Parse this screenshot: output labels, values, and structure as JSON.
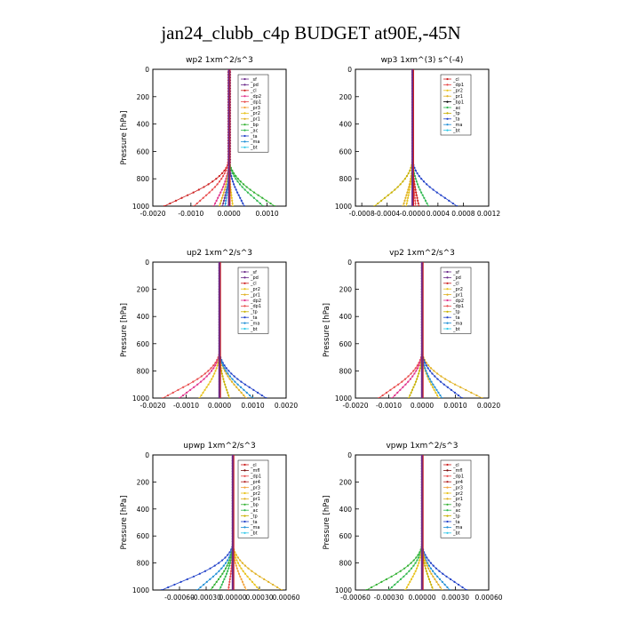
{
  "title": "jan24_clubb_c4p  BUDGET at90E,-45N",
  "colors": {
    "_sf": "#6b2a8a",
    "_pd": "#6b2a8a",
    "_cl": "#cc1f1f",
    "_dp2": "#e0308a",
    "_dp1": "#e84848",
    "_pr3": "#f2a33a",
    "_pr2": "#e8c21a",
    "_pr1": "#e0b020",
    "_bp": "#30b030",
    "_ac": "#2fb84f",
    "_ta": "#2040c8",
    "_ma": "#1f8fd6",
    "_bt": "#30c8e8",
    "_tp": "#c8b000",
    "_mfl": "#7a1010",
    "_pr4": "#b22020"
  },
  "chart_data": [
    {
      "type": "line",
      "title": "wp2   1xm^2/s^3",
      "ylabel": "Pressure [hPa]",
      "xlim": [
        -0.002,
        0.0015
      ],
      "ylim": [
        1000,
        0
      ],
      "xticks": [
        -0.002,
        -0.001,
        0.0,
        0.001
      ],
      "xtick_labels": [
        "-0.0020",
        "-0.0010",
        "0.0000",
        "0.0010"
      ],
      "yticks": [
        0,
        200,
        400,
        600,
        800,
        1000
      ],
      "ytick_labels": [
        "0",
        "200",
        "400",
        "600",
        "800",
        "1000"
      ],
      "legend": [
        "_sf",
        "_pd",
        "_cl",
        "_dp2",
        "_dp1",
        "_pr3",
        "_pr2",
        "_pr1",
        "_bp",
        "_ac",
        "_ta",
        "_ma",
        "_bt"
      ],
      "series": [
        {
          "name": "_pd",
          "peak": -0.0002,
          "base": 3e-05
        },
        {
          "name": "_cl",
          "peak": -0.0017,
          "base": 0.0
        },
        {
          "name": "_dp1",
          "peak": -0.0009,
          "base": -2e-05
        },
        {
          "name": "_dp2",
          "peak": -0.0004,
          "base": 0.0
        },
        {
          "name": "_pr1",
          "peak": -0.00025,
          "base": 0.0
        },
        {
          "name": "_pr2",
          "peak": 0.0001,
          "base": 0.0
        },
        {
          "name": "_bp",
          "peak": 0.0012,
          "base": 0.0
        },
        {
          "name": "_ac",
          "peak": 0.0009,
          "base": 0.0
        },
        {
          "name": "_ta",
          "peak": 0.0004,
          "base": 0.0
        },
        {
          "name": "_ma",
          "peak": -0.0001,
          "base": 0.0
        },
        {
          "name": "_sf",
          "peak": 0.0,
          "base": 0.0
        }
      ]
    },
    {
      "type": "line",
      "title": "wp3   1xm^(3) s^(-4)",
      "ylabel": "",
      "xlim": [
        -0.0009,
        0.0012
      ],
      "ylim": [
        1000,
        0
      ],
      "xticks": [
        -0.0008,
        -0.0004,
        0.0,
        0.0004,
        0.0008,
        0.0012
      ],
      "xtick_labels": [
        "-0.0008",
        "-0.0004",
        "-0.0000",
        "0.0004",
        "0.0008",
        "0.0012"
      ],
      "yticks": [
        0,
        200,
        400,
        600,
        800,
        1000
      ],
      "ytick_labels": [
        "0",
        "200",
        "400",
        "600",
        "800",
        "1000"
      ],
      "legend": [
        "_cl",
        "_dp1",
        "_pr2",
        "_pr1",
        "_bp1",
        "_ac",
        "_tp",
        "_ta",
        "_ma",
        "_bt"
      ],
      "series": [
        {
          "name": "_ta",
          "peak": 0.0007,
          "base": 0.0
        },
        {
          "name": "_tp",
          "peak": -0.0006,
          "base": 0.0
        },
        {
          "name": "_ac",
          "peak": 0.00025,
          "base": 0.0
        },
        {
          "name": "_pr2",
          "peak": -0.0001,
          "base": 0.0
        },
        {
          "name": "_pr1",
          "peak": -0.00015,
          "base": 0.0
        },
        {
          "name": "_dp1",
          "peak": 5e-05,
          "base": 0.0
        },
        {
          "name": "_cl",
          "peak": 0.0001,
          "base": 0.0
        }
      ]
    },
    {
      "type": "line",
      "title": "up2   1xm^2/s^3",
      "ylabel": "Pressure [hPa]",
      "xlim": [
        -0.002,
        0.002
      ],
      "ylim": [
        1000,
        0
      ],
      "xticks": [
        -0.002,
        -0.001,
        0.0,
        0.001,
        0.002
      ],
      "xtick_labels": [
        "-0.0020",
        "-0.0010",
        "0.0000",
        "0.0010",
        "0.0020"
      ],
      "yticks": [
        0,
        200,
        400,
        600,
        800,
        1000
      ],
      "ytick_labels": [
        "0",
        "200",
        "400",
        "600",
        "800",
        "1000"
      ],
      "legend": [
        "_sf",
        "_pd",
        "_cl",
        "_pr2",
        "_pr1",
        "_dp2",
        "_dp1",
        "_tp",
        "_ta",
        "_ma",
        "_bt"
      ],
      "series": [
        {
          "name": "_dp1",
          "peak": -0.0017,
          "base": 0.0
        },
        {
          "name": "_dp2",
          "peak": -0.0012,
          "base": 0.0
        },
        {
          "name": "_pr1",
          "peak": 0.0008,
          "base": 0.0
        },
        {
          "name": "_pr2",
          "peak": -0.0006,
          "base": 0.0
        },
        {
          "name": "_ta",
          "peak": 0.0014,
          "base": 0.0
        },
        {
          "name": "_ma",
          "peak": 0.001,
          "base": 0.0
        },
        {
          "name": "_tp",
          "peak": 0.0003,
          "base": 0.0
        },
        {
          "name": "_cl",
          "peak": 0.0,
          "base": 0.0
        }
      ]
    },
    {
      "type": "line",
      "title": "vp2   1xm^2/s^3",
      "ylabel": "Pressure [hPa]",
      "xlim": [
        -0.002,
        0.002
      ],
      "ylim": [
        1000,
        0
      ],
      "xticks": [
        -0.002,
        -0.001,
        0.0,
        0.001,
        0.002
      ],
      "xtick_labels": [
        "-0.0020",
        "-0.0010",
        "0.0000",
        "0.0010",
        "0.0020"
      ],
      "yticks": [
        0,
        200,
        400,
        600,
        800,
        1000
      ],
      "ytick_labels": [
        "0",
        "200",
        "400",
        "600",
        "800",
        "1000"
      ],
      "legend": [
        "_sf",
        "_pd",
        "_cl",
        "_pr2",
        "_pr1",
        "_dp2",
        "_dp1",
        "_tp",
        "_ta",
        "_ma",
        "_bt"
      ],
      "series": [
        {
          "name": "_dp1",
          "peak": -0.0013,
          "base": 0.0
        },
        {
          "name": "_dp2",
          "peak": -0.0009,
          "base": 0.0
        },
        {
          "name": "_pr1",
          "peak": 0.0018,
          "base": 0.0
        },
        {
          "name": "_pr2",
          "peak": 0.0005,
          "base": 0.0
        },
        {
          "name": "_ta",
          "peak": 0.0012,
          "base": 0.0
        },
        {
          "name": "_ma",
          "peak": 0.0006,
          "base": 0.0
        },
        {
          "name": "_tp",
          "peak": -0.0004,
          "base": 0.0
        },
        {
          "name": "_cl",
          "peak": 0.0,
          "base": 0.0
        }
      ]
    },
    {
      "type": "line",
      "title": "upwp   1xm^2/s^3",
      "ylabel": "Pressure [hPa]",
      "xlim": [
        -0.0009,
        0.0006
      ],
      "ylim": [
        1000,
        0
      ],
      "xticks": [
        -0.0006,
        -0.0003,
        0.0,
        0.0003,
        0.0006
      ],
      "xtick_labels": [
        "-0.00060",
        "-0.00030",
        "0.00000",
        "0.00030",
        "0.00060"
      ],
      "yticks": [
        0,
        200,
        400,
        600,
        800,
        1000
      ],
      "ytick_labels": [
        "0",
        "200",
        "400",
        "600",
        "800",
        "1000"
      ],
      "legend": [
        "_cl",
        "_mfl",
        "_dp1",
        "_pr4",
        "_pr3",
        "_pr2",
        "_pr1",
        "_bp",
        "_ac",
        "_tp",
        "_ta",
        "_ma",
        "_bt"
      ],
      "series": [
        {
          "name": "_ta",
          "peak": -0.0008,
          "base": 0.0
        },
        {
          "name": "_ma",
          "peak": -0.0004,
          "base": 0.0
        },
        {
          "name": "_pr1",
          "peak": 0.00055,
          "base": 0.0
        },
        {
          "name": "_pr2",
          "peak": 0.0003,
          "base": 0.0
        },
        {
          "name": "_bp",
          "peak": -0.00025,
          "base": 0.0
        },
        {
          "name": "_ac",
          "peak": -0.00015,
          "base": 0.0
        },
        {
          "name": "_pr3",
          "peak": 0.00015,
          "base": 0.0
        },
        {
          "name": "_dp1",
          "peak": -5e-05,
          "base": 0.0
        },
        {
          "name": "_cl",
          "peak": 0.0,
          "base": 0.0
        }
      ]
    },
    {
      "type": "line",
      "title": "vpwp   1xm^2/s^3",
      "ylabel": "Pressure [hPa]",
      "xlim": [
        -0.0006,
        0.0006
      ],
      "ylim": [
        1000,
        0
      ],
      "xticks": [
        -0.0006,
        -0.0003,
        0.0,
        0.0003,
        0.0006
      ],
      "xtick_labels": [
        "-0.00060",
        "-0.00030",
        "0.00000",
        "0.00030",
        "0.00060"
      ],
      "yticks": [
        0,
        200,
        400,
        600,
        800,
        1000
      ],
      "ytick_labels": [
        "0",
        "200",
        "400",
        "600",
        "800",
        "1000"
      ],
      "legend": [
        "_cl",
        "_mfl",
        "_dp1",
        "_pr4",
        "_pr3",
        "_pr2",
        "_pr1",
        "_bp",
        "_ac",
        "_tp",
        "_ta",
        "_ma",
        "_bt"
      ],
      "series": [
        {
          "name": "_bp",
          "peak": -0.0005,
          "base": 0.0
        },
        {
          "name": "_ac",
          "peak": -0.0003,
          "base": 0.0
        },
        {
          "name": "_ta",
          "peak": 0.0004,
          "base": 0.0
        },
        {
          "name": "_ma",
          "peak": 0.00025,
          "base": 0.0
        },
        {
          "name": "_pr1",
          "peak": 0.00018,
          "base": 0.0
        },
        {
          "name": "_pr2",
          "peak": -0.00015,
          "base": 0.0
        },
        {
          "name": "_tp",
          "peak": 0.0001,
          "base": 0.0
        },
        {
          "name": "_cl",
          "peak": 0.0,
          "base": 0.0
        }
      ]
    }
  ]
}
